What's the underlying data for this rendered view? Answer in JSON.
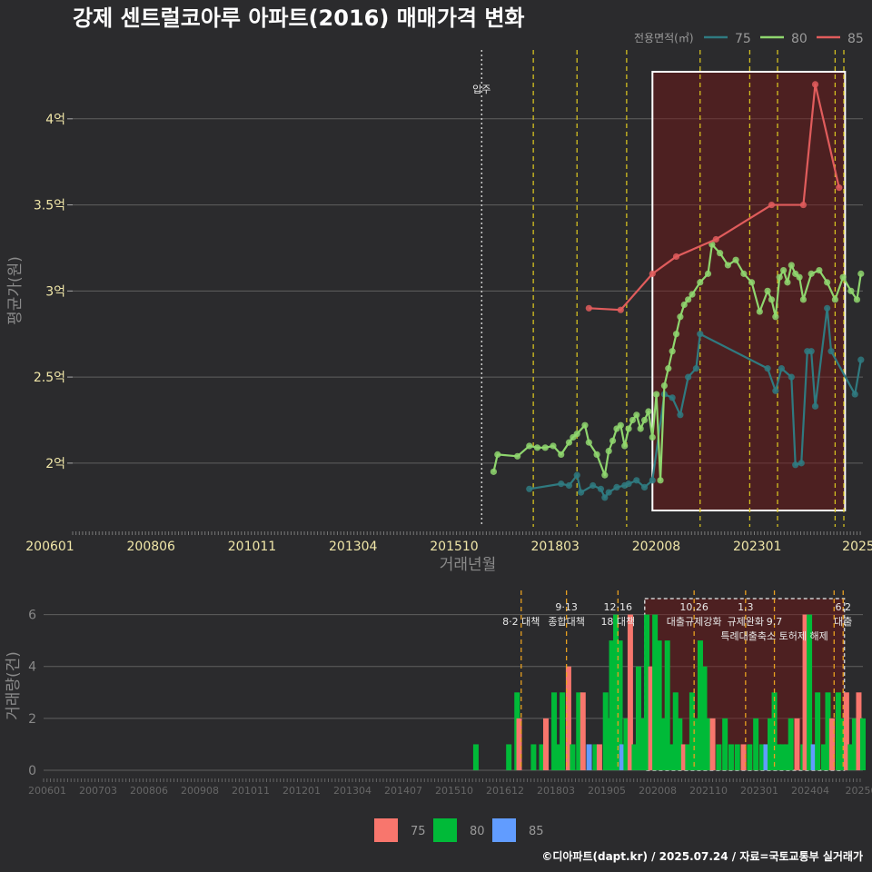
{
  "chart_data": [
    {
      "type": "line",
      "title": "강제 센트럴코아루 아파트(2016) 매매가격 변화",
      "xlabel": "거래년월",
      "ylabel": "평균가(원)",
      "x_tick_labels": [
        "200601",
        "200806",
        "201011",
        "201304",
        "201510",
        "201803",
        "202008",
        "202301",
        "2025"
      ],
      "y_ticks": [
        {
          "v": 2.0,
          "label": "2억"
        },
        {
          "v": 2.5,
          "label": "2.5억"
        },
        {
          "v": 3.0,
          "label": "3억"
        },
        {
          "v": 3.5,
          "label": "3.5억"
        },
        {
          "v": 4.0,
          "label": "4억"
        }
      ],
      "ylim": [
        1.63,
        4.4
      ],
      "xlim": [
        2006.0,
        2025.9
      ],
      "legend_title": "전용면적(㎡)",
      "legend_position": "top-right",
      "move_in": {
        "label": "입주",
        "x": 2016.3
      },
      "policy_lines": [
        2017.6,
        2018.7,
        2019.95,
        2021.8,
        2023.05,
        2023.75,
        2025.2,
        2025.42
      ],
      "highlight_x": [
        2020.6,
        2025.45
      ],
      "series": [
        {
          "name": "75",
          "color": "#2f7a80",
          "points": [
            [
              2017.5,
              1.85
            ],
            [
              2018.3,
              1.88
            ],
            [
              2018.5,
              1.87
            ],
            [
              2018.7,
              1.93
            ],
            [
              2018.8,
              1.83
            ],
            [
              2019.1,
              1.87
            ],
            [
              2019.3,
              1.85
            ],
            [
              2019.4,
              1.8
            ],
            [
              2019.5,
              1.83
            ],
            [
              2019.7,
              1.86
            ],
            [
              2019.9,
              1.87
            ],
            [
              2020.0,
              1.88
            ],
            [
              2020.2,
              1.9
            ],
            [
              2020.4,
              1.86
            ],
            [
              2020.6,
              1.9
            ],
            [
              2020.9,
              2.4
            ],
            [
              2021.1,
              2.38
            ],
            [
              2021.3,
              2.28
            ],
            [
              2021.5,
              2.5
            ],
            [
              2021.7,
              2.55
            ],
            [
              2021.8,
              2.75
            ],
            [
              2023.5,
              2.55
            ],
            [
              2023.7,
              2.42
            ],
            [
              2023.85,
              2.55
            ],
            [
              2024.1,
              2.5
            ],
            [
              2024.2,
              1.99
            ],
            [
              2024.35,
              2.0
            ],
            [
              2024.5,
              2.65
            ],
            [
              2024.6,
              2.65
            ],
            [
              2024.7,
              2.33
            ],
            [
              2025.0,
              2.9
            ],
            [
              2025.1,
              2.65
            ],
            [
              2025.7,
              2.4
            ],
            [
              2025.85,
              2.6
            ]
          ]
        },
        {
          "name": "80",
          "color": "#8fd66e",
          "points": [
            [
              2016.6,
              1.95
            ],
            [
              2016.7,
              2.05
            ],
            [
              2017.2,
              2.04
            ],
            [
              2017.5,
              2.1
            ],
            [
              2017.7,
              2.09
            ],
            [
              2017.9,
              2.09
            ],
            [
              2018.1,
              2.1
            ],
            [
              2018.3,
              2.05
            ],
            [
              2018.5,
              2.12
            ],
            [
              2018.6,
              2.15
            ],
            [
              2018.7,
              2.17
            ],
            [
              2018.9,
              2.22
            ],
            [
              2019.0,
              2.12
            ],
            [
              2019.2,
              2.05
            ],
            [
              2019.4,
              1.93
            ],
            [
              2019.5,
              2.07
            ],
            [
              2019.6,
              2.13
            ],
            [
              2019.7,
              2.2
            ],
            [
              2019.8,
              2.22
            ],
            [
              2019.9,
              2.1
            ],
            [
              2020.0,
              2.2
            ],
            [
              2020.1,
              2.25
            ],
            [
              2020.2,
              2.28
            ],
            [
              2020.3,
              2.2
            ],
            [
              2020.4,
              2.25
            ],
            [
              2020.5,
              2.3
            ],
            [
              2020.6,
              2.15
            ],
            [
              2020.7,
              2.4
            ],
            [
              2020.8,
              1.9
            ],
            [
              2020.9,
              2.45
            ],
            [
              2021.0,
              2.55
            ],
            [
              2021.1,
              2.65
            ],
            [
              2021.2,
              2.75
            ],
            [
              2021.3,
              2.85
            ],
            [
              2021.4,
              2.92
            ],
            [
              2021.5,
              2.95
            ],
            [
              2021.6,
              2.98
            ],
            [
              2021.8,
              3.05
            ],
            [
              2022.0,
              3.1
            ],
            [
              2022.1,
              3.27
            ],
            [
              2022.3,
              3.22
            ],
            [
              2022.5,
              3.15
            ],
            [
              2022.7,
              3.18
            ],
            [
              2022.9,
              3.1
            ],
            [
              2023.1,
              3.05
            ],
            [
              2023.3,
              2.88
            ],
            [
              2023.5,
              3.0
            ],
            [
              2023.6,
              2.95
            ],
            [
              2023.7,
              2.85
            ],
            [
              2023.8,
              3.08
            ],
            [
              2023.9,
              3.12
            ],
            [
              2024.0,
              3.05
            ],
            [
              2024.1,
              3.15
            ],
            [
              2024.2,
              3.1
            ],
            [
              2024.3,
              3.08
            ],
            [
              2024.4,
              2.95
            ],
            [
              2024.6,
              3.1
            ],
            [
              2024.8,
              3.12
            ],
            [
              2025.0,
              3.05
            ],
            [
              2025.2,
              2.95
            ],
            [
              2025.4,
              3.08
            ],
            [
              2025.6,
              3.0
            ],
            [
              2025.75,
              2.95
            ],
            [
              2025.85,
              3.1
            ]
          ]
        },
        {
          "name": "85",
          "color": "#e05c5c",
          "points": [
            [
              2019.0,
              2.9
            ],
            [
              2019.8,
              2.89
            ],
            [
              2020.6,
              3.1
            ],
            [
              2021.2,
              3.2
            ],
            [
              2022.2,
              3.3
            ],
            [
              2023.6,
              3.5
            ],
            [
              2024.4,
              3.5
            ],
            [
              2024.7,
              4.2
            ],
            [
              2025.3,
              3.6
            ]
          ]
        }
      ]
    },
    {
      "type": "bar",
      "ylabel": "거래량(건)",
      "x_tick_labels": [
        "200601",
        "200703",
        "200806",
        "200908",
        "201011",
        "201201",
        "201304",
        "201407",
        "201510",
        "201612",
        "201803",
        "201905",
        "202008",
        "202110",
        "202301",
        "202404",
        "20250"
      ],
      "y_ticks": [
        0,
        2,
        4,
        6
      ],
      "ylim": [
        0,
        7
      ],
      "annotations": [
        {
          "label": "8·2 대책",
          "x": 2017.6,
          "row": 1
        },
        {
          "label": "9·13",
          "x": 2018.7,
          "row": 0
        },
        {
          "label": "종합대책",
          "x": 2018.7,
          "row": 1
        },
        {
          "label": "12·16",
          "x": 2019.95,
          "row": 0
        },
        {
          "label": "18 대책",
          "x": 2019.95,
          "row": 1
        },
        {
          "label": "10.26",
          "x": 2021.8,
          "row": 0
        },
        {
          "label": "대출규제강화",
          "x": 2021.8,
          "row": 1
        },
        {
          "label": "1.3",
          "x": 2023.05,
          "row": 0
        },
        {
          "label": "규제완화",
          "x": 2023.05,
          "row": 1
        },
        {
          "label": "9.7",
          "x": 2023.75,
          "row": 1
        },
        {
          "label": "특례대출축소 토허제 해제",
          "x": 2023.75,
          "row": 2
        },
        {
          "label": "6.2",
          "x": 2025.42,
          "row": 0
        },
        {
          "label": "대출",
          "x": 2025.42,
          "row": 1
        }
      ],
      "series": [
        {
          "name": "75",
          "color": "#f8766d"
        },
        {
          "name": "80",
          "color": "#00ba38"
        },
        {
          "name": "85",
          "color": "#619cff"
        }
      ],
      "bars": [
        {
          "x": 2016.5,
          "s": "80",
          "v": 1
        },
        {
          "x": 2017.3,
          "s": "80",
          "v": 1
        },
        {
          "x": 2017.5,
          "s": "80",
          "v": 3
        },
        {
          "x": 2017.55,
          "s": "75",
          "v": 2
        },
        {
          "x": 2017.9,
          "s": "80",
          "v": 1
        },
        {
          "x": 2018.1,
          "s": "80",
          "v": 1
        },
        {
          "x": 2018.2,
          "s": "75",
          "v": 2
        },
        {
          "x": 2018.4,
          "s": "80",
          "v": 3
        },
        {
          "x": 2018.5,
          "s": "80",
          "v": 1
        },
        {
          "x": 2018.6,
          "s": "80",
          "v": 3
        },
        {
          "x": 2018.75,
          "s": "75",
          "v": 4
        },
        {
          "x": 2018.85,
          "s": "80",
          "v": 1
        },
        {
          "x": 2019.0,
          "s": "80",
          "v": 3
        },
        {
          "x": 2019.1,
          "s": "75",
          "v": 3
        },
        {
          "x": 2019.25,
          "s": "85",
          "v": 1
        },
        {
          "x": 2019.4,
          "s": "80",
          "v": 1
        },
        {
          "x": 2019.5,
          "s": "75",
          "v": 1
        },
        {
          "x": 2019.65,
          "s": "80",
          "v": 3
        },
        {
          "x": 2019.75,
          "s": "80",
          "v": 2
        },
        {
          "x": 2019.8,
          "s": "80",
          "v": 5
        },
        {
          "x": 2019.9,
          "s": "80",
          "v": 6
        },
        {
          "x": 2020.0,
          "s": "80",
          "v": 5
        },
        {
          "x": 2020.05,
          "s": "85",
          "v": 1
        },
        {
          "x": 2020.15,
          "s": "80",
          "v": 2
        },
        {
          "x": 2020.25,
          "s": "75",
          "v": 6
        },
        {
          "x": 2020.35,
          "s": "80",
          "v": 1
        },
        {
          "x": 2020.45,
          "s": "80",
          "v": 4
        },
        {
          "x": 2020.55,
          "s": "80",
          "v": 2
        },
        {
          "x": 2020.65,
          "s": "80",
          "v": 6
        },
        {
          "x": 2020.75,
          "s": "75",
          "v": 4
        },
        {
          "x": 2020.85,
          "s": "80",
          "v": 6
        },
        {
          "x": 2020.95,
          "s": "80",
          "v": 5
        },
        {
          "x": 2021.05,
          "s": "80",
          "v": 2
        },
        {
          "x": 2021.15,
          "s": "80",
          "v": 5
        },
        {
          "x": 2021.25,
          "s": "80",
          "v": 1
        },
        {
          "x": 2021.35,
          "s": "80",
          "v": 3
        },
        {
          "x": 2021.45,
          "s": "80",
          "v": 2
        },
        {
          "x": 2021.55,
          "s": "75",
          "v": 1
        },
        {
          "x": 2021.65,
          "s": "80",
          "v": 1
        },
        {
          "x": 2021.75,
          "s": "80",
          "v": 3
        },
        {
          "x": 2021.85,
          "s": "80",
          "v": 2
        },
        {
          "x": 2021.95,
          "s": "80",
          "v": 5
        },
        {
          "x": 2022.05,
          "s": "80",
          "v": 4
        },
        {
          "x": 2022.15,
          "s": "80",
          "v": 2
        },
        {
          "x": 2022.25,
          "s": "75",
          "v": 2
        },
        {
          "x": 2022.4,
          "s": "80",
          "v": 1
        },
        {
          "x": 2022.55,
          "s": "80",
          "v": 2
        },
        {
          "x": 2022.7,
          "s": "80",
          "v": 1
        },
        {
          "x": 2022.85,
          "s": "80",
          "v": 1
        },
        {
          "x": 2023.0,
          "s": "75",
          "v": 1
        },
        {
          "x": 2023.15,
          "s": "80",
          "v": 1
        },
        {
          "x": 2023.3,
          "s": "80",
          "v": 2
        },
        {
          "x": 2023.45,
          "s": "80",
          "v": 1
        },
        {
          "x": 2023.55,
          "s": "85",
          "v": 1
        },
        {
          "x": 2023.65,
          "s": "80",
          "v": 2
        },
        {
          "x": 2023.75,
          "s": "80",
          "v": 3
        },
        {
          "x": 2023.85,
          "s": "80",
          "v": 1
        },
        {
          "x": 2023.95,
          "s": "80",
          "v": 1
        },
        {
          "x": 2024.05,
          "s": "80",
          "v": 1
        },
        {
          "x": 2024.15,
          "s": "80",
          "v": 2
        },
        {
          "x": 2024.3,
          "s": "75",
          "v": 2
        },
        {
          "x": 2024.45,
          "s": "80",
          "v": 1
        },
        {
          "x": 2024.5,
          "s": "75",
          "v": 6
        },
        {
          "x": 2024.6,
          "s": "80",
          "v": 6
        },
        {
          "x": 2024.7,
          "s": "85",
          "v": 1
        },
        {
          "x": 2024.8,
          "s": "80",
          "v": 3
        },
        {
          "x": 2024.95,
          "s": "80",
          "v": 1
        },
        {
          "x": 2025.05,
          "s": "80",
          "v": 3
        },
        {
          "x": 2025.15,
          "s": "75",
          "v": 2
        },
        {
          "x": 2025.3,
          "s": "80",
          "v": 3
        },
        {
          "x": 2025.4,
          "s": "80",
          "v": 2
        },
        {
          "x": 2025.5,
          "s": "75",
          "v": 3
        },
        {
          "x": 2025.6,
          "s": "80",
          "v": 1
        },
        {
          "x": 2025.7,
          "s": "80",
          "v": 2
        },
        {
          "x": 2025.8,
          "s": "75",
          "v": 3
        },
        {
          "x": 2025.9,
          "s": "80",
          "v": 2
        }
      ]
    }
  ],
  "footer": "©디아파트(dapt.kr) / 2025.07.24 / 자료=국토교통부 실거래가"
}
